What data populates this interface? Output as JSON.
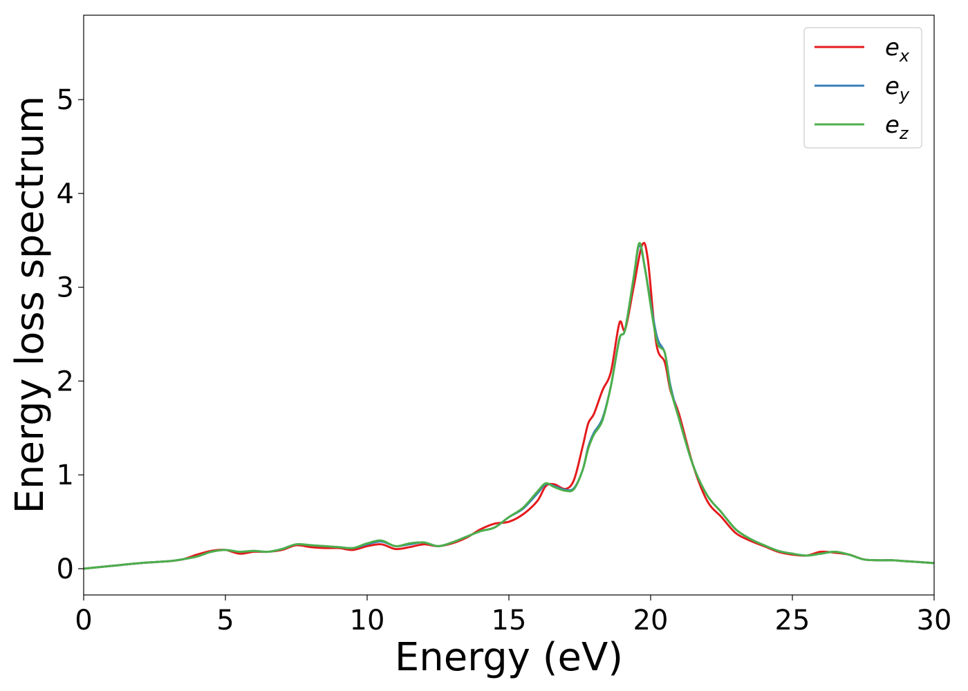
{
  "chart_data": {
    "type": "line",
    "title": "",
    "xlabel": "Energy (eV)",
    "ylabel": "Energy loss spectrum",
    "xlim": [
      0,
      30
    ],
    "ylim": [
      -0.28,
      5.9
    ],
    "xticks": [
      0,
      5,
      10,
      15,
      20,
      25,
      30
    ],
    "yticks": [
      0,
      1,
      2,
      3,
      4,
      5
    ],
    "grid": false,
    "legend_position": "top-right",
    "series": [
      {
        "name": "e",
        "subscript": "x",
        "color": "#e41a1c",
        "points": [
          [
            0,
            0
          ],
          [
            1,
            0.03
          ],
          [
            2,
            0.06
          ],
          [
            3,
            0.08
          ],
          [
            3.5,
            0.1
          ],
          [
            4,
            0.15
          ],
          [
            4.5,
            0.19
          ],
          [
            5,
            0.2
          ],
          [
            5.5,
            0.16
          ],
          [
            6,
            0.18
          ],
          [
            6.5,
            0.18
          ],
          [
            7,
            0.2
          ],
          [
            7.5,
            0.25
          ],
          [
            8,
            0.23
          ],
          [
            8.5,
            0.22
          ],
          [
            9,
            0.22
          ],
          [
            9.5,
            0.2
          ],
          [
            10,
            0.24
          ],
          [
            10.5,
            0.26
          ],
          [
            11,
            0.21
          ],
          [
            11.5,
            0.23
          ],
          [
            12,
            0.26
          ],
          [
            12.5,
            0.24
          ],
          [
            13,
            0.27
          ],
          [
            13.5,
            0.33
          ],
          [
            14,
            0.42
          ],
          [
            14.5,
            0.48
          ],
          [
            15,
            0.5
          ],
          [
            15.5,
            0.58
          ],
          [
            16,
            0.72
          ],
          [
            16.3,
            0.88
          ],
          [
            16.6,
            0.9
          ],
          [
            17,
            0.85
          ],
          [
            17.3,
            0.95
          ],
          [
            17.6,
            1.3
          ],
          [
            17.8,
            1.55
          ],
          [
            18,
            1.65
          ],
          [
            18.3,
            1.9
          ],
          [
            18.6,
            2.1
          ],
          [
            18.9,
            2.62
          ],
          [
            19.1,
            2.55
          ],
          [
            19.4,
            3.0
          ],
          [
            19.7,
            3.45
          ],
          [
            19.9,
            3.3
          ],
          [
            20.2,
            2.4
          ],
          [
            20.5,
            2.2
          ],
          [
            20.7,
            1.9
          ],
          [
            21,
            1.65
          ],
          [
            21.5,
            1.1
          ],
          [
            22,
            0.72
          ],
          [
            22.5,
            0.55
          ],
          [
            23,
            0.38
          ],
          [
            23.5,
            0.3
          ],
          [
            24,
            0.24
          ],
          [
            24.5,
            0.18
          ],
          [
            25,
            0.15
          ],
          [
            25.5,
            0.14
          ],
          [
            26,
            0.18
          ],
          [
            26.5,
            0.17
          ],
          [
            27,
            0.15
          ],
          [
            27.5,
            0.1
          ],
          [
            28,
            0.09
          ],
          [
            28.5,
            0.09
          ],
          [
            29,
            0.08
          ],
          [
            30,
            0.06
          ]
        ]
      },
      {
        "name": "e",
        "subscript": "y",
        "color": "#377eb8",
        "points": [
          [
            0,
            0
          ],
          [
            1,
            0.03
          ],
          [
            2,
            0.06
          ],
          [
            3,
            0.08
          ],
          [
            3.5,
            0.1
          ],
          [
            4,
            0.13
          ],
          [
            4.5,
            0.18
          ],
          [
            5,
            0.2
          ],
          [
            5.5,
            0.18
          ],
          [
            6,
            0.19
          ],
          [
            6.5,
            0.18
          ],
          [
            7,
            0.21
          ],
          [
            7.5,
            0.26
          ],
          [
            8,
            0.25
          ],
          [
            8.5,
            0.24
          ],
          [
            9,
            0.23
          ],
          [
            9.5,
            0.22
          ],
          [
            10,
            0.26
          ],
          [
            10.5,
            0.29
          ],
          [
            11,
            0.24
          ],
          [
            11.5,
            0.26
          ],
          [
            12,
            0.28
          ],
          [
            12.5,
            0.24
          ],
          [
            13,
            0.28
          ],
          [
            13.5,
            0.34
          ],
          [
            14,
            0.4
          ],
          [
            14.5,
            0.44
          ],
          [
            15,
            0.55
          ],
          [
            15.5,
            0.64
          ],
          [
            16,
            0.8
          ],
          [
            16.3,
            0.9
          ],
          [
            16.6,
            0.88
          ],
          [
            17,
            0.84
          ],
          [
            17.3,
            0.86
          ],
          [
            17.6,
            1.05
          ],
          [
            17.8,
            1.3
          ],
          [
            18,
            1.45
          ],
          [
            18.3,
            1.6
          ],
          [
            18.6,
            1.95
          ],
          [
            18.9,
            2.45
          ],
          [
            19.1,
            2.55
          ],
          [
            19.4,
            3.1
          ],
          [
            19.6,
            3.45
          ],
          [
            19.8,
            3.2
          ],
          [
            20.2,
            2.5
          ],
          [
            20.5,
            2.3
          ],
          [
            20.7,
            1.95
          ],
          [
            21,
            1.6
          ],
          [
            21.5,
            1.1
          ],
          [
            22,
            0.78
          ],
          [
            22.5,
            0.6
          ],
          [
            23,
            0.42
          ],
          [
            23.5,
            0.32
          ],
          [
            24,
            0.25
          ],
          [
            24.5,
            0.19
          ],
          [
            25,
            0.16
          ],
          [
            25.5,
            0.14
          ],
          [
            26,
            0.16
          ],
          [
            26.5,
            0.18
          ],
          [
            27,
            0.15
          ],
          [
            27.5,
            0.1
          ],
          [
            28,
            0.09
          ],
          [
            28.5,
            0.09
          ],
          [
            29,
            0.08
          ],
          [
            30,
            0.06
          ]
        ]
      },
      {
        "name": "e",
        "subscript": "z",
        "color": "#4daf4a",
        "points": [
          [
            0,
            0
          ],
          [
            1,
            0.03
          ],
          [
            2,
            0.06
          ],
          [
            3,
            0.08
          ],
          [
            3.5,
            0.1
          ],
          [
            4,
            0.13
          ],
          [
            4.5,
            0.18
          ],
          [
            5,
            0.2
          ],
          [
            5.5,
            0.18
          ],
          [
            6,
            0.19
          ],
          [
            6.5,
            0.18
          ],
          [
            7,
            0.21
          ],
          [
            7.5,
            0.26
          ],
          [
            8,
            0.25
          ],
          [
            8.5,
            0.24
          ],
          [
            9,
            0.23
          ],
          [
            9.5,
            0.22
          ],
          [
            10,
            0.27
          ],
          [
            10.5,
            0.3
          ],
          [
            11,
            0.24
          ],
          [
            11.5,
            0.27
          ],
          [
            12,
            0.28
          ],
          [
            12.5,
            0.24
          ],
          [
            13,
            0.28
          ],
          [
            13.5,
            0.34
          ],
          [
            14,
            0.4
          ],
          [
            14.5,
            0.44
          ],
          [
            15,
            0.55
          ],
          [
            15.5,
            0.65
          ],
          [
            16,
            0.82
          ],
          [
            16.3,
            0.91
          ],
          [
            16.6,
            0.87
          ],
          [
            17,
            0.83
          ],
          [
            17.3,
            0.85
          ],
          [
            17.6,
            1.05
          ],
          [
            17.8,
            1.28
          ],
          [
            18,
            1.43
          ],
          [
            18.3,
            1.58
          ],
          [
            18.6,
            1.95
          ],
          [
            18.9,
            2.45
          ],
          [
            19.1,
            2.55
          ],
          [
            19.4,
            3.1
          ],
          [
            19.6,
            3.47
          ],
          [
            19.8,
            3.2
          ],
          [
            20.2,
            2.45
          ],
          [
            20.5,
            2.3
          ],
          [
            20.7,
            1.92
          ],
          [
            21,
            1.6
          ],
          [
            21.5,
            1.1
          ],
          [
            22,
            0.78
          ],
          [
            22.5,
            0.6
          ],
          [
            23,
            0.42
          ],
          [
            23.5,
            0.32
          ],
          [
            24,
            0.25
          ],
          [
            24.5,
            0.19
          ],
          [
            25,
            0.16
          ],
          [
            25.5,
            0.14
          ],
          [
            26,
            0.16
          ],
          [
            26.5,
            0.18
          ],
          [
            27,
            0.15
          ],
          [
            27.5,
            0.1
          ],
          [
            28,
            0.09
          ],
          [
            28.5,
            0.09
          ],
          [
            29,
            0.08
          ],
          [
            30,
            0.06
          ]
        ]
      }
    ]
  }
}
